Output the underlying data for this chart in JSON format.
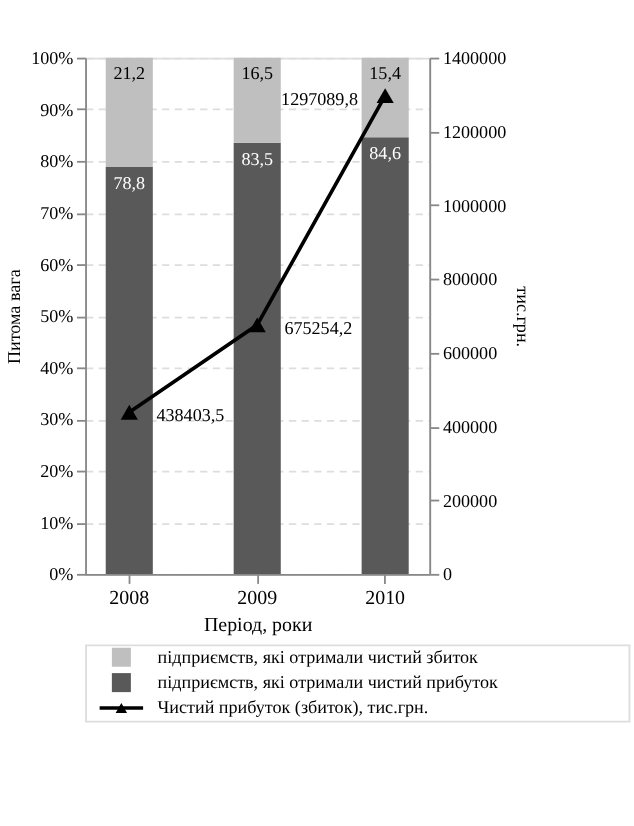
{
  "chart_data": {
    "type": "bar",
    "stacked": true,
    "categories": [
      "2008",
      "2009",
      "2010"
    ],
    "series": [
      {
        "name": "підприємств, які отримали чистий прибуток",
        "color": "#595959",
        "values": [
          78.8,
          83.5,
          84.6
        ],
        "value_labels": [
          "78,8",
          "83,5",
          "84,6"
        ]
      },
      {
        "name": "підприємств, які отримали чистий збиток",
        "color": "#bfbfbf",
        "values": [
          21.2,
          16.5,
          15.4
        ],
        "value_labels": [
          "21,2",
          "16,5",
          "15,4"
        ]
      },
      {
        "name": "Чистий прибуток (збиток), тис.грн.",
        "type": "line",
        "axis": "y2",
        "color": "#000000",
        "marker": "triangle",
        "line_style": "solid",
        "values": [
          438403.5,
          675254.2,
          1297089.8
        ],
        "value_labels": [
          "438403,5",
          "675254,2",
          "1297089,8"
        ]
      }
    ],
    "ylim": [
      0,
      100
    ],
    "yticks": [
      {
        "value": 0,
        "label": "0%"
      },
      {
        "value": 10,
        "label": "10%"
      },
      {
        "value": 20,
        "label": "20%"
      },
      {
        "value": 30,
        "label": "30%"
      },
      {
        "value": 40,
        "label": "40%"
      },
      {
        "value": 50,
        "label": "50%"
      },
      {
        "value": 60,
        "label": "60%"
      },
      {
        "value": 70,
        "label": "70%"
      },
      {
        "value": 80,
        "label": "80%"
      },
      {
        "value": 90,
        "label": "90%"
      },
      {
        "value": 100,
        "label": "100%"
      }
    ],
    "y2lim": [
      0,
      1400000
    ],
    "y2ticks": [
      0,
      200000,
      400000,
      600000,
      800000,
      1000000,
      1200000,
      1400000
    ],
    "ylabel": "Питома вага",
    "y2label": "тис.грн.",
    "xlabel": "Період, роки",
    "grid": "y",
    "legend": "bottom"
  }
}
